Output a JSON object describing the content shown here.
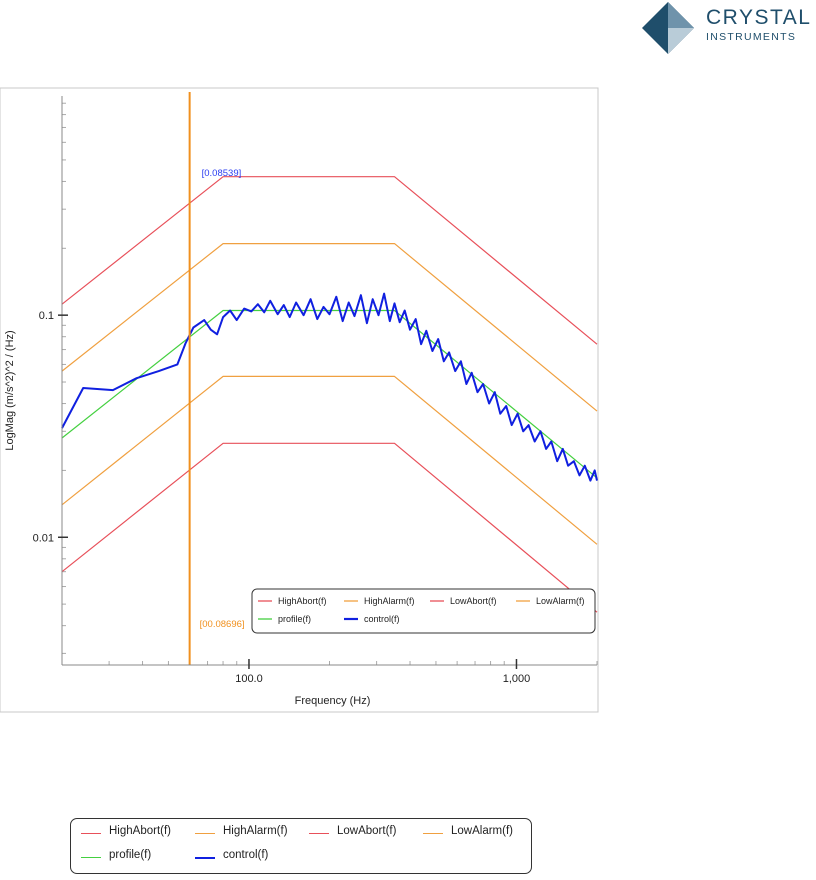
{
  "brand": {
    "name_line1": "CRYSTAL",
    "name_line2": "INSTRUMENTS",
    "color": "#1f4e6b"
  },
  "chart_data": {
    "type": "line",
    "xscale": "log",
    "yscale": "log",
    "xlim": [
      20,
      2000
    ],
    "ylim": [
      0.00266,
      0.97
    ],
    "xlabel": "Frequency (Hz)",
    "ylabel": "LogMag (m/s^2)^2 / (Hz)",
    "x_ticks": [
      {
        "value": 100,
        "label": "100.0"
      },
      {
        "value": 1000,
        "label": "1,000"
      }
    ],
    "y_ticks": [
      {
        "value": 0.1,
        "label": "0.1"
      },
      {
        "value": 0.01,
        "label": "0.01"
      }
    ],
    "cursor": {
      "x": 60,
      "color": "#f0901e",
      "label_top": "[0.08539]",
      "label_bottom": "[00.08696]"
    },
    "series": [
      {
        "name": "HighAbort(f)",
        "color": "#e8505a",
        "x": [
          20,
          80,
          350,
          2000
        ],
        "y": [
          0.112,
          0.42,
          0.42,
          0.074
        ]
      },
      {
        "name": "HighAlarm(f)",
        "color": "#f0a040",
        "x": [
          20,
          80,
          350,
          2000
        ],
        "y": [
          0.056,
          0.21,
          0.21,
          0.037
        ]
      },
      {
        "name": "LowAbort(f)",
        "color": "#e8505a",
        "x": [
          20,
          80,
          350,
          2000
        ],
        "y": [
          0.007,
          0.0265,
          0.0265,
          0.0046
        ]
      },
      {
        "name": "LowAlarm(f)",
        "color": "#f0a040",
        "x": [
          20,
          80,
          350,
          2000
        ],
        "y": [
          0.014,
          0.053,
          0.053,
          0.0093
        ]
      },
      {
        "name": "profile(f)",
        "color": "#44d040",
        "x": [
          20,
          80,
          350,
          2000
        ],
        "y": [
          0.028,
          0.105,
          0.105,
          0.0185
        ]
      },
      {
        "name": "control(f)",
        "color": "#1020e0",
        "x": [
          20,
          24,
          31,
          38,
          46,
          54,
          58,
          62,
          68,
          72,
          76,
          80,
          85,
          90,
          96,
          102,
          108,
          114,
          120,
          128,
          135,
          142,
          150,
          160,
          170,
          180,
          190,
          200,
          212,
          224,
          236,
          248,
          262,
          276,
          290,
          305,
          320,
          336,
          350,
          366,
          382,
          400,
          420,
          440,
          460,
          485,
          510,
          535,
          560,
          590,
          620,
          650,
          680,
          715,
          750,
          790,
          830,
          870,
          915,
          960,
          1010,
          1060,
          1110,
          1170,
          1230,
          1290,
          1350,
          1420,
          1490,
          1560,
          1640,
          1720,
          1800,
          1890,
          1960,
          2000
        ],
        "y": [
          0.031,
          0.047,
          0.046,
          0.052,
          0.056,
          0.06,
          0.075,
          0.088,
          0.095,
          0.086,
          0.082,
          0.098,
          0.105,
          0.095,
          0.107,
          0.104,
          0.112,
          0.103,
          0.116,
          0.101,
          0.111,
          0.098,
          0.114,
          0.1,
          0.118,
          0.096,
          0.109,
          0.101,
          0.121,
          0.094,
          0.114,
          0.099,
          0.123,
          0.092,
          0.118,
          0.1,
          0.125,
          0.094,
          0.113,
          0.093,
          0.105,
          0.086,
          0.096,
          0.074,
          0.085,
          0.069,
          0.078,
          0.062,
          0.068,
          0.056,
          0.062,
          0.049,
          0.055,
          0.045,
          0.049,
          0.04,
          0.045,
          0.036,
          0.039,
          0.032,
          0.036,
          0.03,
          0.032,
          0.027,
          0.03,
          0.025,
          0.027,
          0.022,
          0.025,
          0.021,
          0.022,
          0.019,
          0.021,
          0.018,
          0.02,
          0.018
        ]
      }
    ],
    "legend": {
      "position": "bottom-right"
    }
  },
  "legend_copy": {
    "items": [
      {
        "name": "HighAbort(f)",
        "color": "#e8505a",
        "thick": false
      },
      {
        "name": "HighAlarm(f)",
        "color": "#f0a040",
        "thick": false
      },
      {
        "name": "LowAbort(f)",
        "color": "#e8505a",
        "thick": false
      },
      {
        "name": "LowAlarm(f)",
        "color": "#f0a040",
        "thick": false
      },
      {
        "name": "profile(f)",
        "color": "#44d040",
        "thick": false
      },
      {
        "name": "control(f)",
        "color": "#1020e0",
        "thick": true
      }
    ]
  }
}
